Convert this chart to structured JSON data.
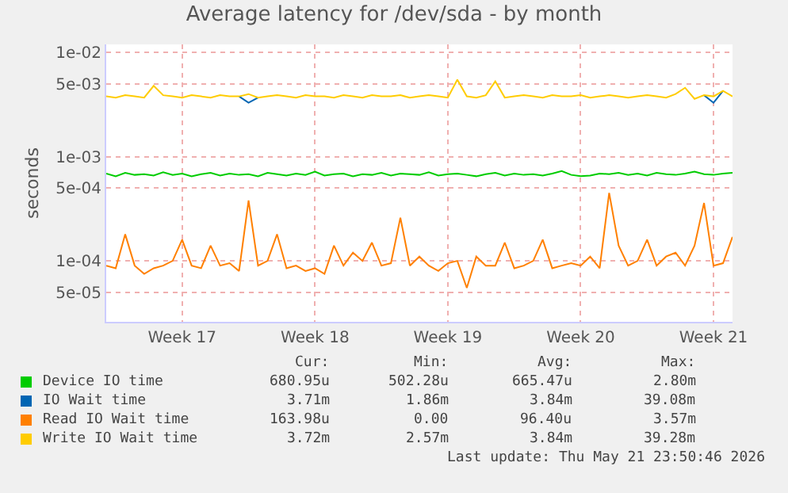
{
  "chart_data": {
    "type": "line",
    "title": "Average latency for /dev/sda - by month",
    "ylabel": "seconds",
    "categories": [
      null,
      null,
      null,
      null,
      null,
      null,
      null,
      null,
      "Week 17",
      null,
      null,
      null,
      null,
      null,
      null,
      null,
      null,
      null,
      null,
      null,
      null,
      null,
      "Week 18",
      null,
      null,
      null,
      null,
      null,
      null,
      null,
      null,
      null,
      null,
      null,
      null,
      null,
      "Week 19",
      null,
      null,
      null,
      null,
      null,
      null,
      null,
      null,
      null,
      null,
      null,
      null,
      null,
      "Week 20",
      null,
      null,
      null,
      null,
      null,
      null,
      null,
      null,
      null,
      null,
      null,
      null,
      null,
      "Week 21",
      null,
      null
    ],
    "series": [
      {
        "name": "Device IO time",
        "color": "#00cc00",
        "values": [
          0.00069,
          0.00065,
          0.0007,
          0.00067,
          0.00068,
          0.00066,
          0.00071,
          0.00067,
          0.00069,
          0.00065,
          0.00068,
          0.0007,
          0.00066,
          0.00069,
          0.00067,
          0.00068,
          0.00065,
          0.0007,
          0.00068,
          0.00066,
          0.00069,
          0.00067,
          0.00072,
          0.00066,
          0.00068,
          0.00069,
          0.00065,
          0.00068,
          0.00067,
          0.0007,
          0.00066,
          0.00069,
          0.00068,
          0.00067,
          0.00071,
          0.00066,
          0.00068,
          0.00069,
          0.00067,
          0.00065,
          0.00068,
          0.0007,
          0.00066,
          0.00069,
          0.00067,
          0.00068,
          0.00066,
          0.00069,
          0.00073,
          0.00067,
          0.00065,
          0.00066,
          0.00069,
          0.00068,
          0.0007,
          0.00067,
          0.00069,
          0.00066,
          0.0007,
          0.00068,
          0.00067,
          0.00069,
          0.00072,
          0.00068,
          0.00067,
          0.00069,
          0.0007
        ]
      },
      {
        "name": "IO Wait time",
        "color": "#0066b3",
        "values": [
          null,
          null,
          null,
          null,
          null,
          null,
          null,
          null,
          null,
          null,
          null,
          null,
          null,
          null,
          0.0038,
          0.0033,
          0.0037,
          null,
          null,
          null,
          null,
          null,
          null,
          null,
          null,
          null,
          null,
          null,
          null,
          null,
          null,
          null,
          null,
          null,
          null,
          null,
          null,
          null,
          null,
          null,
          null,
          null,
          null,
          null,
          null,
          null,
          null,
          null,
          null,
          null,
          null,
          null,
          null,
          null,
          null,
          null,
          null,
          null,
          null,
          null,
          null,
          null,
          null,
          0.0039,
          0.0033,
          0.0043,
          null
        ]
      },
      {
        "name": "Read IO Wait time",
        "color": "#ff8000",
        "values": [
          9e-05,
          8.5e-05,
          0.00018,
          9e-05,
          7.5e-05,
          8.5e-05,
          9e-05,
          0.0001,
          0.00016,
          9e-05,
          8.5e-05,
          0.00014,
          9e-05,
          9.5e-05,
          8e-05,
          0.00038,
          9e-05,
          0.0001,
          0.00018,
          8.5e-05,
          9e-05,
          8e-05,
          8.5e-05,
          7.5e-05,
          0.00014,
          9e-05,
          0.00012,
          0.0001,
          0.00015,
          9e-05,
          9.5e-05,
          0.00026,
          9e-05,
          0.00011,
          9e-05,
          8e-05,
          9.5e-05,
          0.0001,
          5.5e-05,
          0.00011,
          9e-05,
          9e-05,
          0.00015,
          8.5e-05,
          9e-05,
          0.0001,
          0.00016,
          8.5e-05,
          9e-05,
          9.5e-05,
          9e-05,
          0.00011,
          8.5e-05,
          0.00045,
          0.00014,
          9e-05,
          0.0001,
          0.00016,
          9e-05,
          0.00011,
          0.00012,
          9e-05,
          0.00014,
          0.00036,
          9e-05,
          9.5e-05,
          0.00017
        ]
      },
      {
        "name": "Write IO Wait time",
        "color": "#ffcc00",
        "values": [
          0.0038,
          0.0037,
          0.0039,
          0.0038,
          0.0037,
          0.0048,
          0.0039,
          0.0038,
          0.0037,
          0.0039,
          0.0038,
          0.0037,
          0.0039,
          0.0038,
          0.0038,
          0.004,
          0.0037,
          0.0038,
          0.0039,
          0.0038,
          0.0037,
          0.0039,
          0.0038,
          0.0038,
          0.0037,
          0.0039,
          0.0038,
          0.0037,
          0.0039,
          0.0038,
          0.0038,
          0.0039,
          0.0037,
          0.0038,
          0.0039,
          0.0038,
          0.0037,
          0.0055,
          0.0038,
          0.0037,
          0.0039,
          0.0053,
          0.0037,
          0.0038,
          0.0039,
          0.0038,
          0.0037,
          0.0039,
          0.0038,
          0.0038,
          0.0039,
          0.0037,
          0.0038,
          0.0039,
          0.0038,
          0.0037,
          0.0038,
          0.0039,
          0.0038,
          0.0037,
          0.004,
          0.0046,
          0.0036,
          0.0039,
          0.0038,
          0.0043,
          0.0038
        ]
      }
    ],
    "log": "y",
    "ylim": [
      2.6e-05,
      0.012
    ],
    "yticks": [
      {
        "value": 5e-05,
        "label": "5e-05"
      },
      {
        "value": 0.0001,
        "label": "1e-04"
      },
      {
        "value": 0.0005,
        "label": "5e-04"
      },
      {
        "value": 0.001,
        "label": "1e-03"
      },
      {
        "value": 0.005,
        "label": "5e-03"
      },
      {
        "value": 0.01,
        "label": "1e-02"
      }
    ],
    "grid": true,
    "legend": "bottom left",
    "line_style": "solid",
    "marker": "none",
    "annotations": [
      "Cur:",
      "Min:",
      "Avg:",
      "Max:",
      "680.95u",
      "502.28u",
      "665.47u",
      "2.80m",
      "3.71m",
      "1.86m",
      "3.84m",
      "39.08m",
      "163.98u",
      "0.00",
      "96.40u",
      "3.57m",
      "3.72m",
      "2.57m",
      "3.84m",
      "39.28m",
      "Last update: Thu May 21 23:50:46 2026"
    ]
  }
}
